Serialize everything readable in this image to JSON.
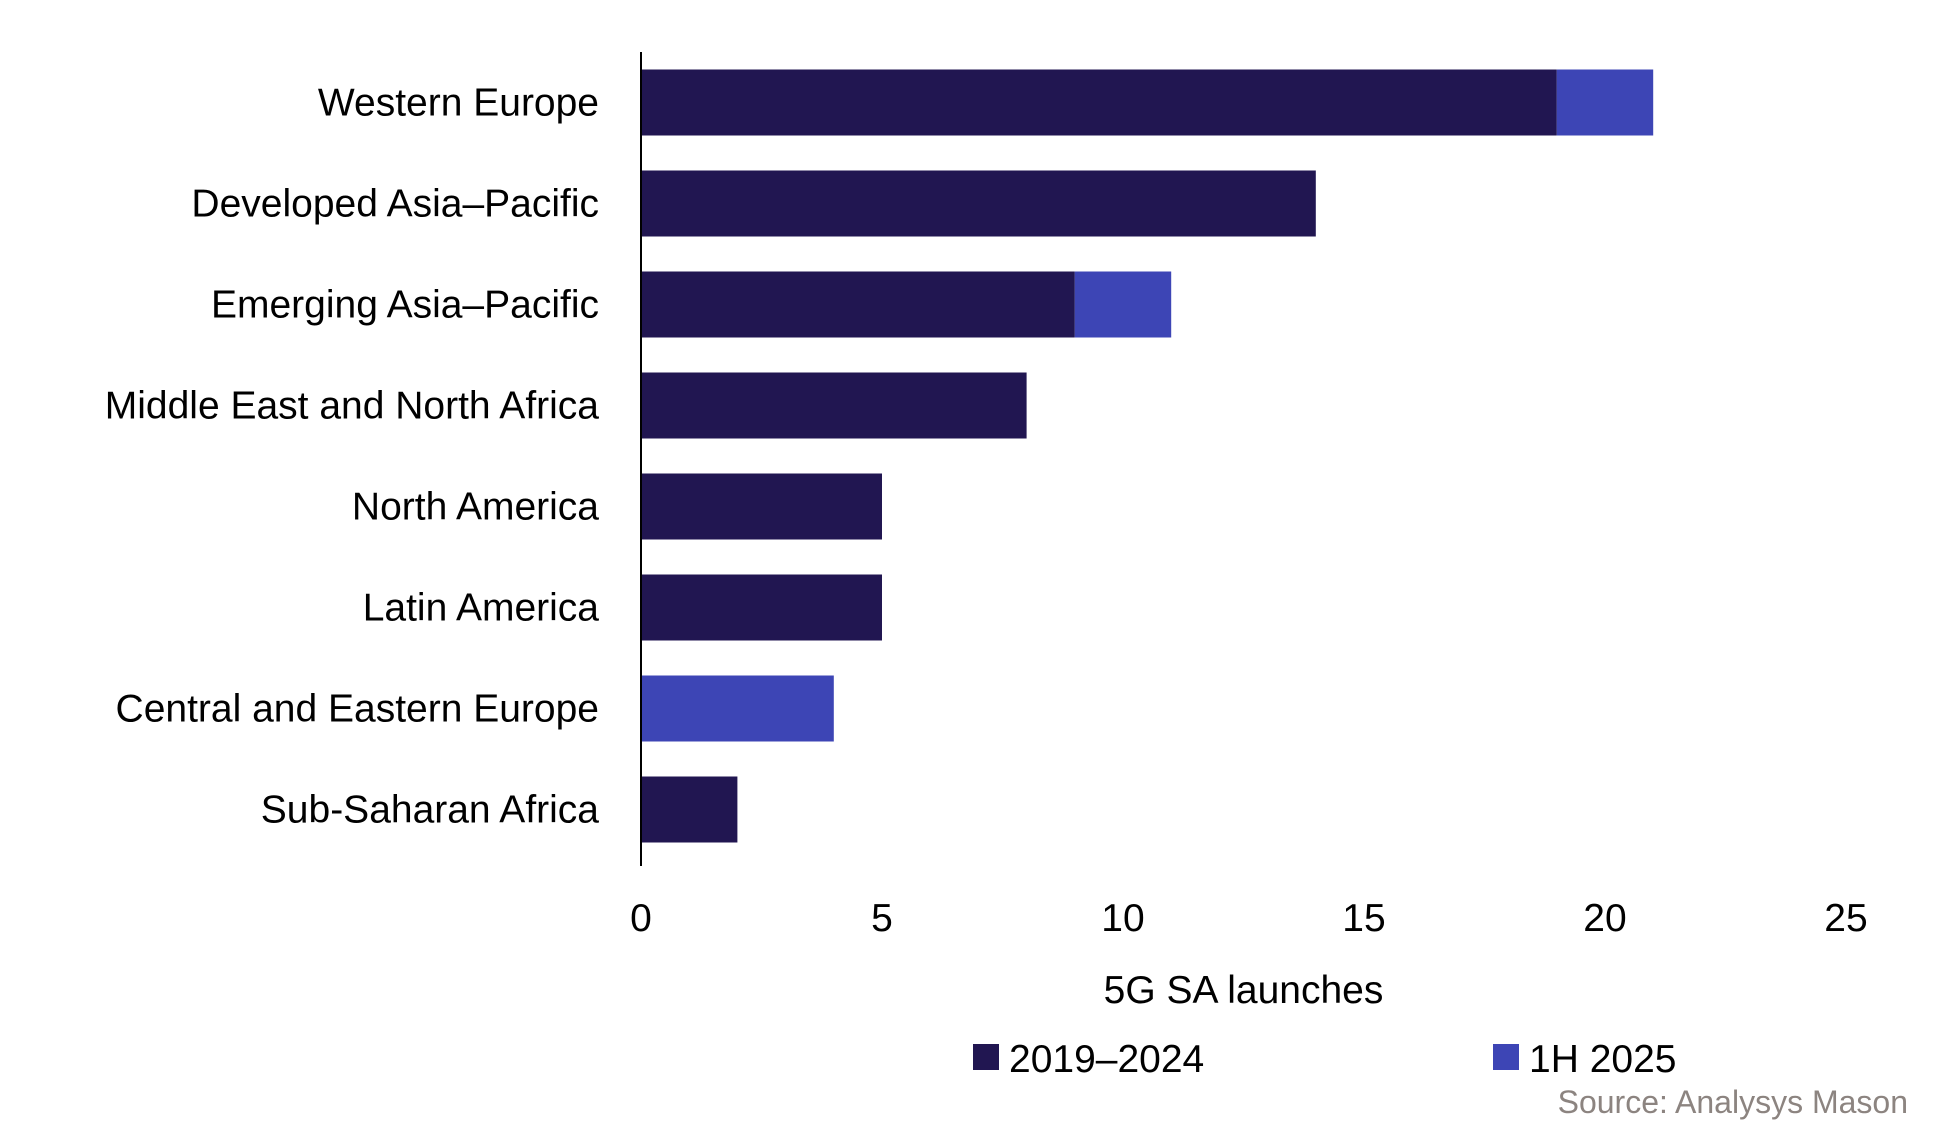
{
  "chart_data": {
    "type": "bar",
    "orientation": "horizontal",
    "stacked": true,
    "categories": [
      "Western Europe",
      "Developed Asia–Pacific",
      "Emerging Asia–Pacific",
      "Middle East and North Africa",
      "North America",
      "Latin America",
      "Central and Eastern Europe",
      "Sub-Saharan Africa"
    ],
    "series": [
      {
        "name": "2019–2024",
        "color": "#211651",
        "values": [
          19,
          14,
          9,
          8,
          5,
          5,
          0,
          2
        ]
      },
      {
        "name": "1H 2025",
        "color": "#3d45b5",
        "values": [
          2,
          0,
          2,
          0,
          0,
          0,
          4,
          0
        ]
      }
    ],
    "xlabel": "5G SA launches",
    "xlim": [
      0,
      25
    ],
    "xticks": [
      "0",
      "5",
      "10",
      "15",
      "20",
      "25"
    ],
    "grid": false,
    "legend_position": "bottom"
  },
  "source": "Source: Analysys Mason"
}
